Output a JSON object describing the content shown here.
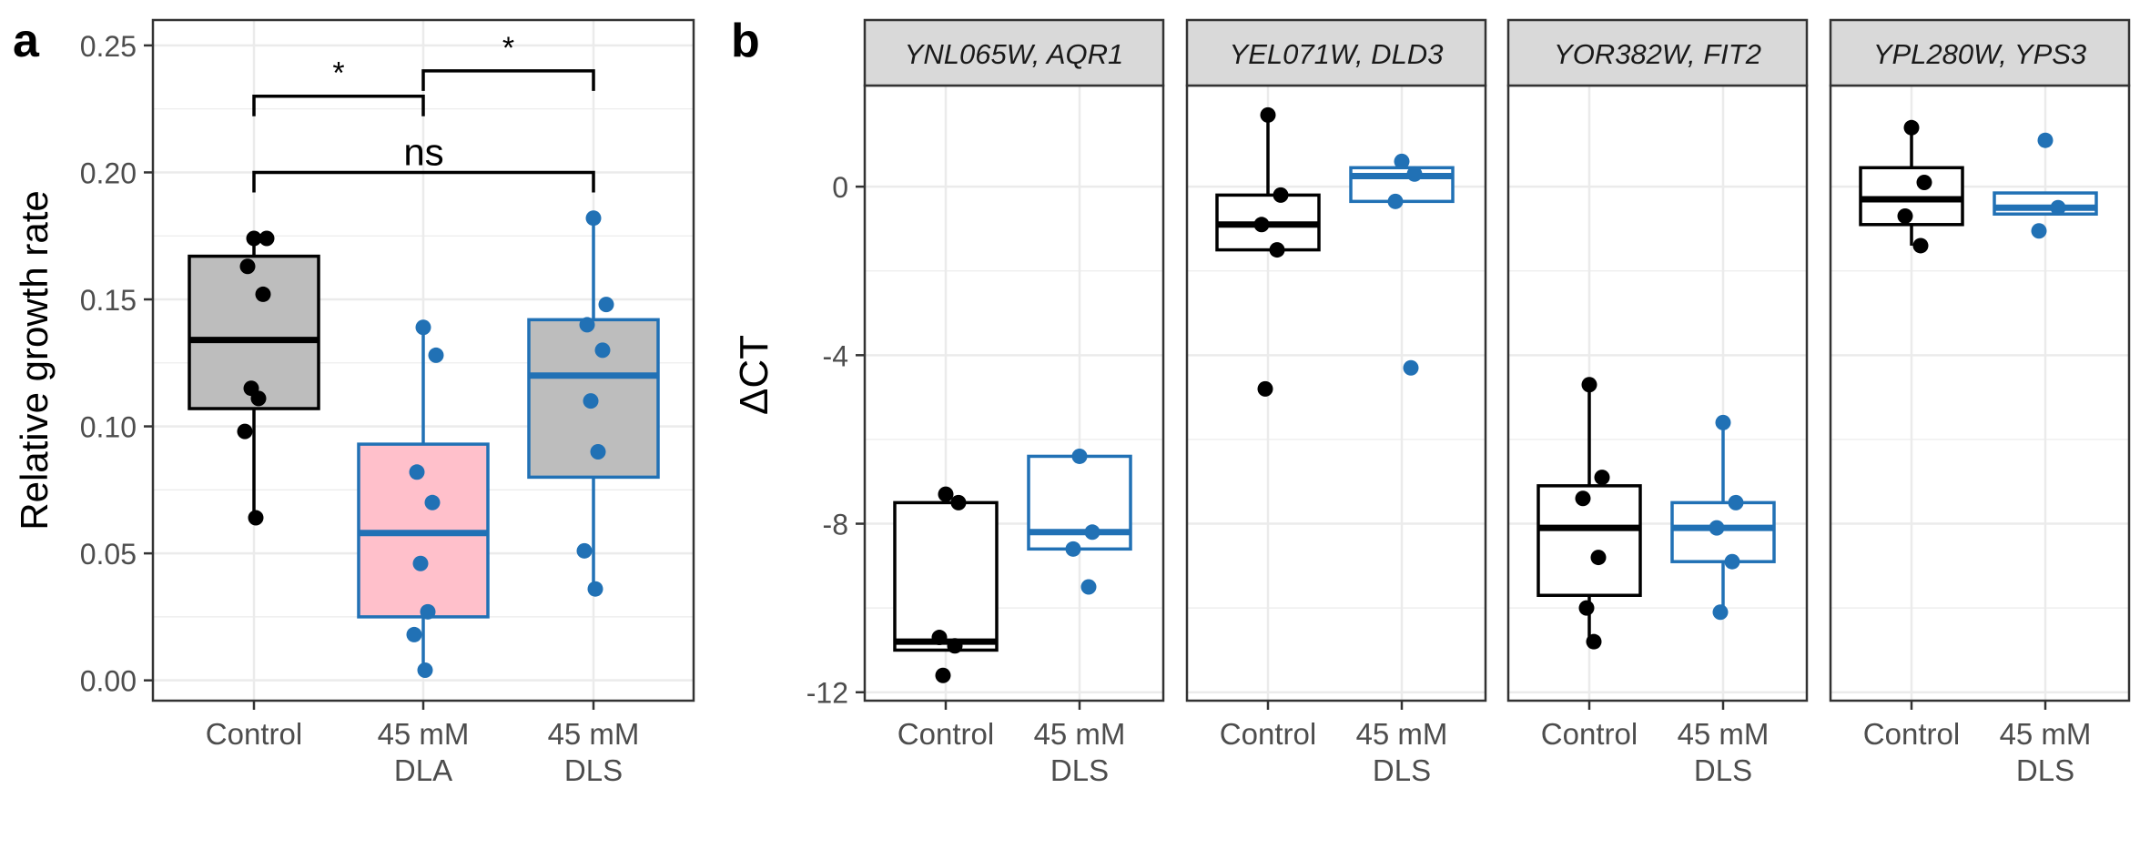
{
  "panel_labels": {
    "a": "a",
    "b": "b"
  },
  "colors": {
    "control": "#000000",
    "treated": "#2171b5",
    "control_fill": "#bdbdbd",
    "dla_fill": "#ffc0cb",
    "strip_bg": "#d9d9d9",
    "grid": "#ebebeb"
  },
  "significance": {
    "star": "*",
    "ns": "ns"
  },
  "chart_data": [
    {
      "type": "box",
      "panel": "a",
      "ylabel": "Relative growth rate",
      "ylim": [
        -0.008,
        0.26
      ],
      "yticks": [
        0.0,
        0.05,
        0.1,
        0.15,
        0.2,
        0.25
      ],
      "ytick_labels": [
        "0.00",
        "0.05",
        "0.10",
        "0.15",
        "0.20",
        "0.25"
      ],
      "categories": [
        {
          "label1": "Control",
          "label2": ""
        },
        {
          "label1": "45 mM",
          "label2": "DLA"
        },
        {
          "label1": "45 mM",
          "label2": "DLS"
        }
      ],
      "groups": [
        {
          "color": "#000000",
          "fill": "#bdbdbd",
          "box": {
            "q1": 0.107,
            "median": 0.134,
            "q3": 0.167,
            "wmin": 0.064,
            "wmax": 0.174
          },
          "points": [
            0.174,
            0.174,
            0.163,
            0.152,
            0.115,
            0.111,
            0.098,
            0.064
          ]
        },
        {
          "color": "#2171b5",
          "fill": "#ffc0cb",
          "box": {
            "q1": 0.025,
            "median": 0.058,
            "q3": 0.093,
            "wmin": 0.004,
            "wmax": 0.139
          },
          "points": [
            0.139,
            0.128,
            0.082,
            0.07,
            0.046,
            0.027,
            0.018,
            0.004
          ]
        },
        {
          "color": "#2171b5",
          "fill": "#bdbdbd",
          "box": {
            "q1": 0.08,
            "median": 0.12,
            "q3": 0.142,
            "wmin": 0.036,
            "wmax": 0.182
          },
          "points": [
            0.182,
            0.148,
            0.14,
            0.13,
            0.11,
            0.09,
            0.051,
            0.036
          ]
        }
      ],
      "brackets": [
        {
          "from": 0,
          "to": 1,
          "y": 0.23,
          "label": "*"
        },
        {
          "from": 1,
          "to": 2,
          "y": 0.24,
          "label": "*"
        },
        {
          "from": 0,
          "to": 2,
          "y": 0.2,
          "label": "ns"
        }
      ]
    },
    {
      "type": "box",
      "panel": "b",
      "ylabel": "ΔCT",
      "ylim": [
        -12.2,
        2.4
      ],
      "yticks": [
        -12,
        -8,
        -4,
        0
      ],
      "ytick_labels": [
        "-12",
        "-8",
        "-4",
        "0"
      ],
      "categories": [
        {
          "label1": "Control",
          "label2": ""
        },
        {
          "label1": "45 mM",
          "label2": "DLS"
        }
      ],
      "facets": [
        {
          "strip": "YNL065W, AQR1",
          "groups": [
            {
              "box": {
                "q1": -11.0,
                "median": -10.8,
                "q3": -7.5,
                "wmin": -11.0,
                "wmax": -7.5
              },
              "points": [
                -7.3,
                -7.5,
                -10.7,
                -10.9,
                -11.6
              ]
            },
            {
              "box": {
                "q1": -8.6,
                "median": -8.2,
                "q3": -6.4,
                "wmin": -8.6,
                "wmax": -6.4
              },
              "points": [
                -6.4,
                -8.2,
                -8.6,
                -9.5
              ]
            }
          ]
        },
        {
          "strip": "YEL071W, DLD3",
          "groups": [
            {
              "box": {
                "q1": -1.5,
                "median": -0.9,
                "q3": -0.2,
                "wmin": -1.5,
                "wmax": 1.7
              },
              "points": [
                1.7,
                -0.2,
                -0.9,
                -1.5,
                -4.8
              ]
            },
            {
              "box": {
                "q1": -0.35,
                "median": 0.25,
                "q3": 0.45,
                "wmin": -0.35,
                "wmax": 0.6
              },
              "points": [
                0.6,
                0.3,
                -0.35,
                -4.3
              ]
            }
          ]
        },
        {
          "strip": "YOR382W, FIT2",
          "groups": [
            {
              "box": {
                "q1": -9.7,
                "median": -8.1,
                "q3": -7.1,
                "wmin": -10.8,
                "wmax": -4.7
              },
              "points": [
                -4.7,
                -6.9,
                -7.4,
                -8.8,
                -10.0,
                -10.8
              ]
            },
            {
              "box": {
                "q1": -8.9,
                "median": -8.1,
                "q3": -7.5,
                "wmin": -10.1,
                "wmax": -5.6
              },
              "points": [
                -5.6,
                -7.5,
                -8.1,
                -8.9,
                -10.1
              ]
            }
          ]
        },
        {
          "strip": "YPL280W, YPS3",
          "groups": [
            {
              "box": {
                "q1": -0.9,
                "median": -0.3,
                "q3": 0.45,
                "wmin": -1.4,
                "wmax": 1.4
              },
              "points": [
                1.4,
                0.1,
                -0.7,
                -1.4
              ]
            },
            {
              "box": {
                "q1": -0.65,
                "median": -0.5,
                "q3": -0.15,
                "wmin": -0.65,
                "wmax": -0.15
              },
              "points": [
                1.1,
                -0.5,
                -1.05
              ]
            }
          ]
        }
      ]
    }
  ]
}
